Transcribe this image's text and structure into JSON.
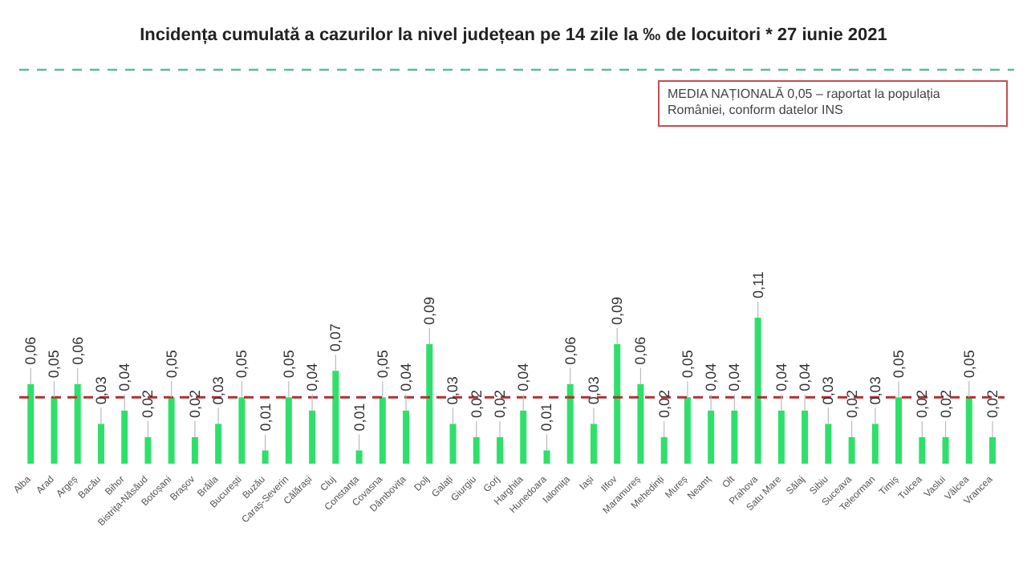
{
  "chart_data": {
    "type": "bar",
    "title": "Incidența cumulată a cazurilor la nivel județean pe 14 zile la ‰ de locuitori *  27 iunie 2021",
    "categories": [
      "Alba",
      "Arad",
      "Argeș",
      "Bacău",
      "Bihor",
      "Bistrița-Năsăud",
      "Botoșani",
      "Brașov",
      "Brăila",
      "București",
      "Buzău",
      "Caraș-Severin",
      "Călărași",
      "Cluj",
      "Constanța",
      "Covasna",
      "Dâmbovița",
      "Dolj",
      "Galați",
      "Giurgiu",
      "Gorj",
      "Harghita",
      "Hunedoara",
      "Ialomița",
      "Iași",
      "Ilfov",
      "Maramureș",
      "Mehedinți",
      "Mureș",
      "Neamț",
      "Olt",
      "Prahova",
      "Satu Mare",
      "Sălaj",
      "Sibiu",
      "Suceava",
      "Teleorman",
      "Timiș",
      "Tulcea",
      "Vaslui",
      "Vâlcea",
      "Vrancea"
    ],
    "values": [
      0.06,
      0.05,
      0.06,
      0.03,
      0.04,
      0.02,
      0.05,
      0.02,
      0.03,
      0.05,
      0.01,
      0.05,
      0.04,
      0.07,
      0.01,
      0.05,
      0.04,
      0.09,
      0.03,
      0.02,
      0.02,
      0.04,
      0.01,
      0.06,
      0.03,
      0.09,
      0.06,
      0.02,
      0.05,
      0.04,
      0.04,
      0.11,
      0.04,
      0.04,
      0.03,
      0.02,
      0.03,
      0.05,
      0.02,
      0.02,
      0.05,
      0.02
    ],
    "value_labels": [
      "0,06",
      "0,05",
      "0,06",
      "0,03",
      "0,04",
      "0,02",
      "0,05",
      "0,02",
      "0,03",
      "0,05",
      "0,01",
      "0,05",
      "0,04",
      "0,07",
      "0,01",
      "0,05",
      "0,04",
      "0,09",
      "0,03",
      "0,02",
      "0,02",
      "0,04",
      "0,01",
      "0,06",
      "0,03",
      "0,09",
      "0,06",
      "0,02",
      "0,05",
      "0,04",
      "0,04",
      "0,11",
      "0,04",
      "0,04",
      "0,03",
      "0,02",
      "0,03",
      "0,05",
      "0,02",
      "0,02",
      "0,05",
      "0,02"
    ],
    "color": "#2ee06a",
    "tick_labels": "x",
    "ref_lines": [
      {
        "axis": "y",
        "value": 0.05,
        "color": "#b03030",
        "line_style": "dashed"
      }
    ],
    "annotations": [
      "MEDIA NAȚIONALĂ 0,05 – raportat la populația României, conform datelor INS"
    ],
    "grid": false,
    "legend": false
  }
}
